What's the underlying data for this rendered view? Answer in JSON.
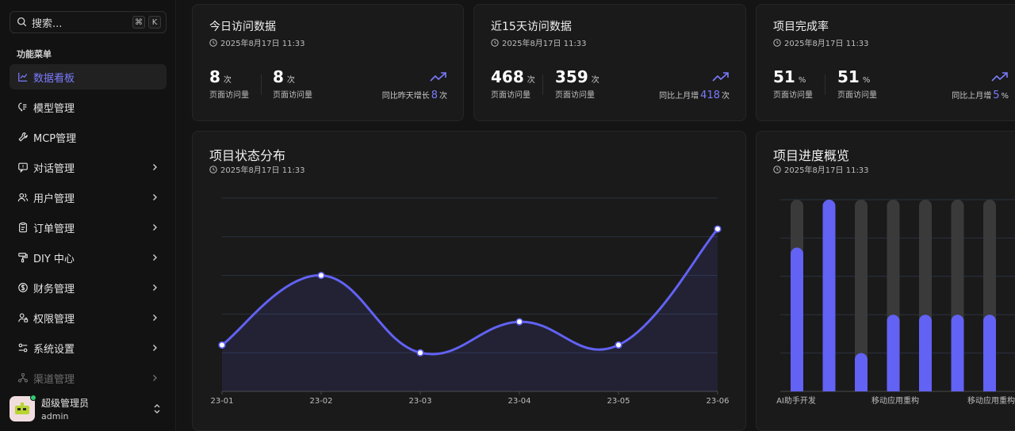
{
  "sidebar": {
    "search_placeholder": "搜索...",
    "shortcut_cmd": "⌘",
    "shortcut_key": "K",
    "menu_heading": "功能菜单",
    "items": [
      {
        "label": "数据看板",
        "icon": "chart-icon",
        "active": true,
        "has_children": false
      },
      {
        "label": "模型管理",
        "icon": "model-icon",
        "active": false,
        "has_children": false
      },
      {
        "label": "MCP管理",
        "icon": "wrench-icon",
        "active": false,
        "has_children": false
      },
      {
        "label": "对话管理",
        "icon": "chat-icon",
        "active": false,
        "has_children": true
      },
      {
        "label": "用户管理",
        "icon": "users-icon",
        "active": false,
        "has_children": true
      },
      {
        "label": "订单管理",
        "icon": "clipboard-icon",
        "active": false,
        "has_children": true
      },
      {
        "label": "DIY 中心",
        "icon": "paint-roller-icon",
        "active": false,
        "has_children": true
      },
      {
        "label": "财务管理",
        "icon": "dollar-icon",
        "active": false,
        "has_children": true
      },
      {
        "label": "权限管理",
        "icon": "user-lock-icon",
        "active": false,
        "has_children": true
      },
      {
        "label": "系统设置",
        "icon": "settings-sliders-icon",
        "active": false,
        "has_children": true
      },
      {
        "label": "渠道管理",
        "icon": "network-icon",
        "active": false,
        "has_children": true
      }
    ],
    "user": {
      "name": "超级管理员",
      "role": "admin"
    }
  },
  "cards": {
    "today": {
      "title": "今日访问数据",
      "time": "2025年8月17日 11:33",
      "stats": [
        {
          "value": "8",
          "unit": "次",
          "label": "页面访问量"
        },
        {
          "value": "8",
          "unit": "次",
          "label": "页面访问量"
        }
      ],
      "trend_prefix": "同比昨天增长",
      "trend_value": "8",
      "trend_unit": "次"
    },
    "days15": {
      "title": "近15天访问数据",
      "time": "2025年8月17日 11:33",
      "stats": [
        {
          "value": "468",
          "unit": "次",
          "label": "页面访问量"
        },
        {
          "value": "359",
          "unit": "次",
          "label": "页面访问量"
        }
      ],
      "trend_prefix": "同比上月增",
      "trend_value": "418",
      "trend_unit": "次"
    },
    "completion": {
      "title": "项目完成率",
      "time": "2025年8月17日 11:33",
      "stats": [
        {
          "value": "51",
          "unit": "%",
          "label": "页面访问量"
        },
        {
          "value": "51",
          "unit": "%",
          "label": "页面访问量"
        }
      ],
      "trend_prefix": "同比上月增",
      "trend_value": "5",
      "trend_unit": "%"
    },
    "status": {
      "title": "项目状态分布",
      "time": "2025年8月17日 11:33"
    },
    "progress": {
      "title": "项目进度概览",
      "time": "2025年8月17日 11:33"
    }
  },
  "colors": {
    "accent": "#6262f5",
    "bg": "#141414",
    "card": "#1a1a1a",
    "track": "#3a3a3a"
  },
  "chart_data": [
    {
      "type": "area",
      "title": "项目状态分布",
      "categories": [
        "23-01",
        "23-02",
        "23-03",
        "23-04",
        "23-05",
        "23-06"
      ],
      "series": [
        {
          "values": [
            12,
            30,
            10,
            18,
            12,
            42
          ]
        }
      ],
      "ylim": [
        0,
        50
      ],
      "grid": true
    },
    {
      "type": "bar",
      "title": "项目进度概览",
      "categories": [
        "AI助手开发",
        "",
        "",
        "移动应用重构",
        "",
        "",
        "移动应用重构"
      ],
      "tick_labels": [
        "AI助手开发",
        "移动应用重构",
        "移动应用重构"
      ],
      "series": [
        {
          "values": [
            75,
            100,
            20,
            40,
            40,
            40,
            40
          ]
        }
      ],
      "ylim": [
        0,
        100
      ],
      "grid": true
    }
  ]
}
